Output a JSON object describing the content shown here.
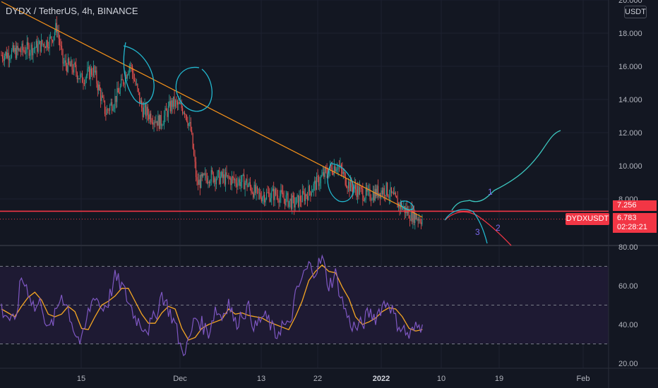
{
  "header": {
    "symbol_title": "DYDX / TetherUS, 4h, BINANCE",
    "currency_button": "USDT"
  },
  "price_scale": {
    "labels": [
      "20.000",
      "18.000",
      "16.000",
      "14.000",
      "12.000",
      "10.000",
      "8.000"
    ]
  },
  "rsi_scale": {
    "labels": [
      "80.00",
      "60.00",
      "40.00",
      "20.00"
    ]
  },
  "time_axis": {
    "labels": [
      {
        "text": "15",
        "bold": false
      },
      {
        "text": "Dec",
        "bold": false
      },
      {
        "text": "13",
        "bold": false
      },
      {
        "text": "22",
        "bold": false
      },
      {
        "text": "2022",
        "bold": true
      },
      {
        "text": "10",
        "bold": false
      },
      {
        "text": "19",
        "bold": false
      },
      {
        "text": "Feb",
        "bold": false
      }
    ]
  },
  "tags": {
    "symbol": "DYDXUSDT",
    "level_value": "7.256",
    "last_price": "6.783",
    "countdown": "02:28:21"
  },
  "wave_labels": [
    "1",
    "2",
    "3"
  ],
  "colors": {
    "background": "#131722",
    "candle_up": "#26a69a",
    "candle_down": "#ef5350",
    "trendline": "#f7931a",
    "support_line": "#f23645",
    "drawing_cyan": "#22b8cf",
    "rsi_line": "#7e57c2",
    "rsi_ma": "#f5a623",
    "rsi_band": "#1e1a33"
  },
  "chart_data": {
    "type": "candlestick",
    "symbol": "DYDX / TetherUS",
    "interval": "4h",
    "exchange": "BINANCE",
    "price_range": [
      6.0,
      20.0
    ],
    "support_level": 7.256,
    "last_price": 6.783,
    "trendline": {
      "from": [
        "Nov 7",
        19.9
      ],
      "to": [
        "Jan 10",
        6.9
      ]
    },
    "price_path": [
      {
        "x": "Nov 8",
        "close": 17.2
      },
      {
        "x": "Nov 10",
        "close": 17.6
      },
      {
        "x": "Nov 11",
        "close": 18.4
      },
      {
        "x": "Nov 12",
        "close": 16.2
      },
      {
        "x": "Nov 14",
        "close": 15.8
      },
      {
        "x": "Nov 15",
        "close": 15.2
      },
      {
        "x": "Nov 17",
        "close": 15.8
      },
      {
        "x": "Nov 19",
        "close": 13.2
      },
      {
        "x": "Nov 21",
        "close": 14.3
      },
      {
        "x": "Nov 23",
        "close": 16.2
      },
      {
        "x": "Nov 25",
        "close": 13.4
      },
      {
        "x": "Nov 28",
        "close": 12.6
      },
      {
        "x": "Nov 30",
        "close": 13.8
      },
      {
        "x": "Dec 2",
        "close": 13.4
      },
      {
        "x": "Dec 3",
        "close": 12.1
      },
      {
        "x": "Dec 4",
        "close": 8.9
      },
      {
        "x": "Dec 6",
        "close": 9.4
      },
      {
        "x": "Dec 9",
        "close": 9.2
      },
      {
        "x": "Dec 12",
        "close": 9.0
      },
      {
        "x": "Dec 14",
        "close": 8.2
      },
      {
        "x": "Dec 17",
        "close": 8.3
      },
      {
        "x": "Dec 20",
        "close": 7.7
      },
      {
        "x": "Dec 22",
        "close": 8.3
      },
      {
        "x": "Dec 25",
        "close": 9.5
      },
      {
        "x": "Dec 27",
        "close": 10.1
      },
      {
        "x": "Dec 29",
        "close": 8.8
      },
      {
        "x": "Jan 1",
        "close": 8.2
      },
      {
        "x": "Jan 4",
        "close": 8.6
      },
      {
        "x": "Jan 6",
        "close": 7.7
      },
      {
        "x": "Jan 8",
        "close": 7.1
      },
      {
        "x": "Jan 10",
        "close": 6.78
      }
    ],
    "rsi": {
      "range": [
        20,
        80
      ],
      "bands": [
        30,
        50,
        70
      ],
      "values": [
        48,
        44,
        40,
        64,
        58,
        48,
        52,
        36,
        44,
        56,
        48,
        36,
        30,
        46,
        56,
        48,
        52,
        64,
        60,
        52,
        44,
        40,
        38,
        44,
        56,
        48,
        40,
        26,
        30,
        44,
        40,
        36,
        48,
        44,
        52,
        40,
        46,
        48,
        38,
        44,
        42,
        34,
        40,
        38,
        54,
        64,
        70,
        68,
        74,
        60,
        66,
        52,
        42,
        38,
        40,
        46,
        44,
        50,
        52,
        42,
        38,
        34,
        38,
        40
      ]
    }
  }
}
